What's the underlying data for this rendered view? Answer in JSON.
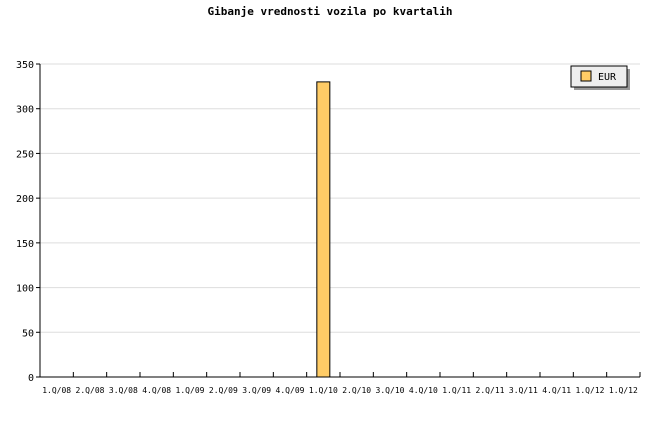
{
  "chart_data": {
    "type": "bar",
    "title": "Gibanje vrednosti vozila po kvartalih",
    "xlabel": "",
    "ylabel": "",
    "categories": [
      "1.Q/08",
      "2.Q/08",
      "3.Q/08",
      "4.Q/08",
      "1.Q/09",
      "2.Q/09",
      "3.Q/09",
      "4.Q/09",
      "1.Q/10",
      "2.Q/10",
      "3.Q/10",
      "4.Q/10",
      "1.Q/11",
      "2.Q/11",
      "3.Q/11",
      "4.Q/11",
      "1.Q/12",
      "1.Q/12"
    ],
    "series": [
      {
        "name": "EUR",
        "values": [
          0,
          0,
          0,
          0,
          0,
          0,
          0,
          0,
          330,
          0,
          0,
          0,
          0,
          0,
          0,
          0,
          0,
          0
        ],
        "color": "#ffcc66"
      }
    ],
    "ylim": [
      0,
      350
    ],
    "yticks": [
      0,
      50,
      100,
      150,
      200,
      250,
      300,
      350
    ],
    "grid": true,
    "legend_position": "top-right"
  }
}
